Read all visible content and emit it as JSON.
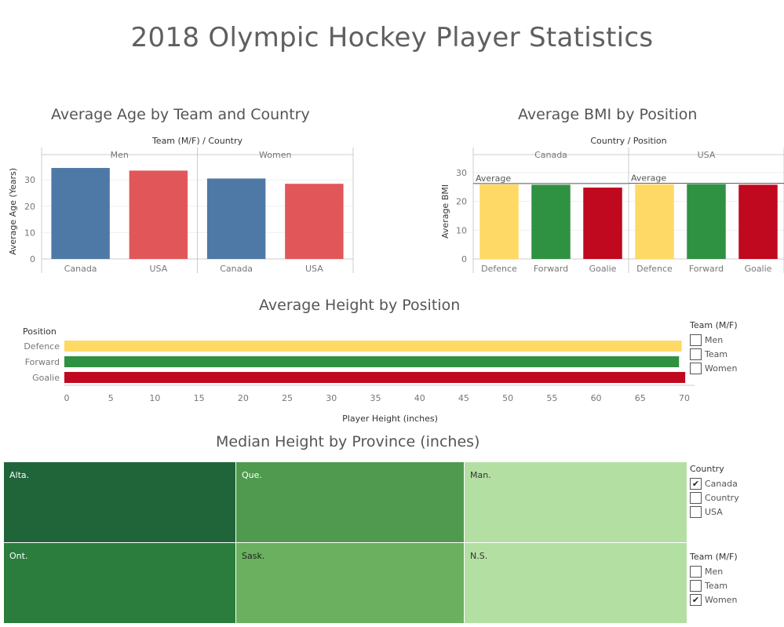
{
  "dashboard": {
    "title": "2018 Olympic Hockey Player Statistics"
  },
  "colors": {
    "canada_blue": "#4e79a7",
    "usa_red": "#e15759",
    "defence_yellow": "#ffd966",
    "forward_green": "#2f9142",
    "goalie_red": "#c0081e",
    "tm_alta": "#206439",
    "tm_ont": "#2a7d3d",
    "tm_que": "#4f9a4f",
    "tm_sask": "#6ab05e",
    "tm_man": "#b3dfa3",
    "tm_ns": "#b3dfa3"
  },
  "age_chart": {
    "title": "Average Age by Team and Country",
    "header": "Team (M/F)  /  Country",
    "ylabel": "Average Age (Years)"
  },
  "bmi_chart": {
    "title": "Average BMI by Position",
    "header": "Country  /  Position",
    "ylabel": "Average BMI",
    "reference_label": "Average"
  },
  "height_chart": {
    "title": "Average Height by Position",
    "row_header": "Position",
    "xlabel": "Player Height (inches)"
  },
  "treemap_chart": {
    "title": "Median Height by Province (inches)"
  },
  "legend_team_top": {
    "title": "Team (M/F)",
    "items": [
      {
        "label": "Men",
        "checked": ""
      },
      {
        "label": "Team",
        "checked": ""
      },
      {
        "label": "Women",
        "checked": ""
      }
    ]
  },
  "filter_country": {
    "title": "Country",
    "items": [
      {
        "label": "Canada",
        "checked": "✔"
      },
      {
        "label": "Country",
        "checked": ""
      },
      {
        "label": "USA",
        "checked": ""
      }
    ]
  },
  "filter_team": {
    "title": "Team (M/F)",
    "items": [
      {
        "label": "Men",
        "checked": ""
      },
      {
        "label": "Team",
        "checked": ""
      },
      {
        "label": "Women",
        "checked": "✔"
      }
    ]
  },
  "chart_data": [
    {
      "type": "bar",
      "title": "Average Age by Team and Country",
      "panels": [
        "Men",
        "Women"
      ],
      "categories": [
        "Canada",
        "USA"
      ],
      "series": [
        {
          "panel": "Men",
          "values": [
            34.5,
            33.5
          ]
        },
        {
          "panel": "Women",
          "values": [
            30.5,
            28.5
          ]
        }
      ],
      "ylabel": "Average Age (Years)",
      "yticks": [
        0,
        10,
        20,
        30
      ],
      "ylim": [
        0,
        36
      ],
      "colors_by_category": [
        "#4e79a7",
        "#e15759"
      ]
    },
    {
      "type": "bar",
      "title": "Average BMI by Position",
      "panels": [
        "Canada",
        "USA"
      ],
      "categories": [
        "Defence",
        "Forward",
        "Goalie"
      ],
      "series": [
        {
          "panel": "Canada",
          "values": [
            25.9,
            25.8,
            24.8
          ],
          "reference_line": 26.2
        },
        {
          "panel": "USA",
          "values": [
            25.9,
            26.0,
            25.8
          ],
          "reference_line": 26.3
        }
      ],
      "ylabel": "Average BMI",
      "yticks": [
        0,
        10,
        20,
        30
      ],
      "ylim": [
        0,
        33
      ],
      "colors_by_category": [
        "#ffd966",
        "#2f9142",
        "#c0081e"
      ]
    },
    {
      "type": "bar",
      "orientation": "horizontal",
      "title": "Average Height by Position",
      "categories": [
        "Defence",
        "Forward",
        "Goalie"
      ],
      "values": [
        69.7,
        69.4,
        70.1
      ],
      "xlabel": "Player Height (inches)",
      "xticks": [
        0,
        5,
        10,
        15,
        20,
        25,
        30,
        35,
        40,
        45,
        50,
        55,
        60,
        65,
        70
      ],
      "xlim": [
        0,
        70
      ],
      "colors_by_category": [
        "#ffd966",
        "#2f9142",
        "#c0081e"
      ]
    },
    {
      "type": "heatmap",
      "subtype": "treemap",
      "title": "Median Height by Province (inches)",
      "cells": [
        {
          "label": "Alta.",
          "color": "#206439"
        },
        {
          "label": "Ont.",
          "color": "#2a7d3d"
        },
        {
          "label": "Que.",
          "color": "#4f9a4f"
        },
        {
          "label": "Sask.",
          "color": "#6ab05e"
        },
        {
          "label": "Man.",
          "color": "#b3dfa3"
        },
        {
          "label": "N.S.",
          "color": "#b3dfa3"
        }
      ]
    }
  ]
}
